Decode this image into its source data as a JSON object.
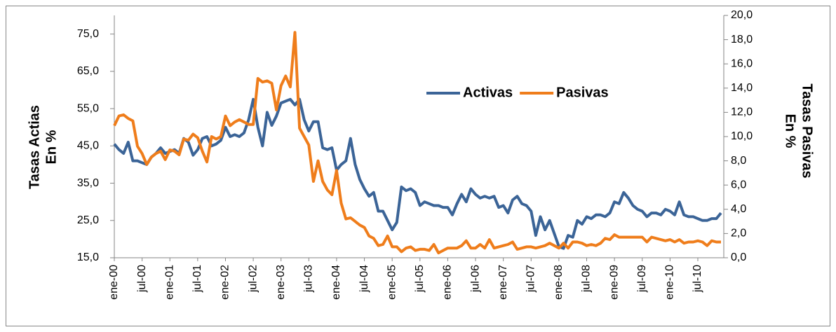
{
  "chart_data": {
    "type": "line",
    "ylabel": [
      "Tasas Actias",
      "En %"
    ],
    "y2label": [
      "Tasas Pasivas",
      "En %"
    ],
    "categories": [
      "ene-00",
      null,
      null,
      null,
      null,
      null,
      "jul-00",
      null,
      null,
      null,
      null,
      null,
      "ene-01",
      null,
      null,
      null,
      null,
      null,
      "jul-01",
      null,
      null,
      null,
      null,
      null,
      "ene-02",
      null,
      null,
      null,
      null,
      null,
      "jul-02",
      null,
      null,
      null,
      null,
      null,
      "ene-03",
      null,
      null,
      null,
      null,
      null,
      "jul-03",
      null,
      null,
      null,
      null,
      null,
      "ene-04",
      null,
      null,
      null,
      null,
      null,
      "jul-04",
      null,
      null,
      null,
      null,
      null,
      "ene-05",
      null,
      null,
      null,
      null,
      null,
      "jul-05",
      null,
      null,
      null,
      null,
      null,
      "ene-06",
      null,
      null,
      null,
      null,
      null,
      "jul-06",
      null,
      null,
      null,
      null,
      null,
      "ene-07",
      null,
      null,
      null,
      null,
      null,
      "jul-07",
      null,
      null,
      null,
      null,
      null,
      "ene-08",
      null,
      null,
      null,
      null,
      null,
      "jul-08",
      null,
      null,
      null,
      null,
      null,
      "ene-09",
      null,
      null,
      null,
      null,
      null,
      "jul-09",
      null,
      null,
      null,
      null,
      null,
      "ene-10",
      null,
      null,
      null,
      null,
      null,
      "jul-10",
      null,
      null,
      null,
      null,
      null
    ],
    "series": [
      {
        "name": "Activas",
        "color": "#3b6497",
        "values": [
          45.5,
          44,
          43,
          46,
          41,
          41,
          40.5,
          40,
          42,
          43,
          44.5,
          43,
          43.5,
          44,
          43,
          47,
          46,
          42.5,
          44,
          47,
          47.5,
          45,
          45.5,
          46.5,
          50,
          47.5,
          48,
          47.5,
          48.5,
          52,
          57.5,
          50,
          45,
          54,
          50.5,
          53,
          56.5,
          57,
          57.5,
          56,
          57.5,
          52,
          49,
          51.5,
          51.5,
          44.5,
          44,
          44.5,
          38.5,
          40,
          41,
          47,
          40,
          36,
          33.5,
          31.5,
          32.5,
          27.5,
          27.5,
          25,
          22.5,
          24.5,
          34,
          33,
          33.5,
          32.5,
          29,
          30,
          29.5,
          29,
          29,
          28.5,
          28.5,
          26.5,
          29.5,
          32,
          30,
          33.5,
          32,
          31,
          31.5,
          31,
          31.5,
          28.5,
          29,
          27,
          30.5,
          31.5,
          29.5,
          29,
          27.5,
          21,
          26,
          22.5,
          25,
          21.5,
          18,
          17.5,
          21,
          20.5,
          25,
          24,
          26,
          25.5,
          26.5,
          26.5,
          26,
          27,
          30,
          29.5,
          32.5,
          31,
          29,
          28,
          27.5,
          26,
          27,
          27,
          26.5,
          28,
          27.5,
          26.5,
          30,
          26.5,
          26,
          26,
          25.5,
          25,
          25,
          25.5,
          25.5,
          27
        ]
      },
      {
        "name": "Pasivas",
        "color": "#ef7d1b",
        "axis": "y2",
        "values": [
          10.9,
          11.7,
          11.8,
          11.5,
          11.3,
          9.2,
          8.6,
          7.7,
          8.3,
          8.6,
          8.8,
          8.1,
          8.9,
          8.8,
          8.5,
          9.8,
          9.7,
          10.2,
          9.9,
          8.8,
          7.9,
          10.0,
          9.8,
          10.0,
          11.7,
          10.9,
          11.2,
          11.4,
          11.2,
          11.0,
          11.0,
          14.8,
          14.5,
          14.6,
          14.4,
          12.2,
          14.2,
          15.0,
          14.1,
          18.6,
          10.7,
          10.0,
          9.3,
          6.3,
          8.0,
          6.3,
          5.6,
          5.2,
          7.2,
          4.5,
          3.2,
          3.3,
          3.0,
          2.7,
          2.5,
          1.8,
          1.6,
          1.0,
          1.1,
          1.8,
          0.9,
          0.9,
          0.5,
          0.8,
          0.9,
          0.6,
          0.7,
          0.7,
          0.6,
          1.1,
          0.4,
          0.6,
          0.8,
          0.8,
          0.8,
          1.0,
          1.4,
          0.8,
          0.8,
          1.1,
          0.8,
          1.5,
          0.8,
          0.9,
          1.0,
          1.1,
          1.3,
          0.7,
          0.8,
          0.9,
          0.9,
          0.8,
          0.9,
          1.0,
          1.2,
          1.0,
          0.8,
          1.2,
          0.8,
          1.3,
          1.3,
          1.2,
          1.0,
          1.1,
          1.0,
          1.2,
          1.6,
          1.5,
          1.9,
          1.7,
          1.7,
          1.7,
          1.7,
          1.7,
          1.7,
          1.3,
          1.7,
          1.6,
          1.5,
          1.4,
          1.5,
          1.3,
          1.5,
          1.2,
          1.3,
          1.3,
          1.4,
          1.3,
          1.0,
          1.4,
          1.3,
          1.3
        ]
      }
    ],
    "ylim": [
      15,
      80
    ],
    "yticks": [
      {
        "value": 15,
        "label": "15,0"
      },
      {
        "value": 25,
        "label": "25,0"
      },
      {
        "value": 35,
        "label": "35,0"
      },
      {
        "value": 45,
        "label": "45,0"
      },
      {
        "value": 55,
        "label": "55,0"
      },
      {
        "value": 65,
        "label": "65,0"
      },
      {
        "value": 75,
        "label": "75,0"
      }
    ],
    "y2lim": [
      0,
      20
    ],
    "y2ticks": [
      {
        "value": 0,
        "label": "0,0"
      },
      {
        "value": 2,
        "label": "2,0"
      },
      {
        "value": 4,
        "label": "4,0"
      },
      {
        "value": 6,
        "label": "6,0"
      },
      {
        "value": 8,
        "label": "8,0"
      },
      {
        "value": 10,
        "label": "10,0"
      },
      {
        "value": 12,
        "label": "12,0"
      },
      {
        "value": 14,
        "label": "14,0"
      },
      {
        "value": 16,
        "label": "16,0"
      },
      {
        "value": 18,
        "label": "18,0"
      },
      {
        "value": 20,
        "label": "20,0"
      }
    ]
  }
}
